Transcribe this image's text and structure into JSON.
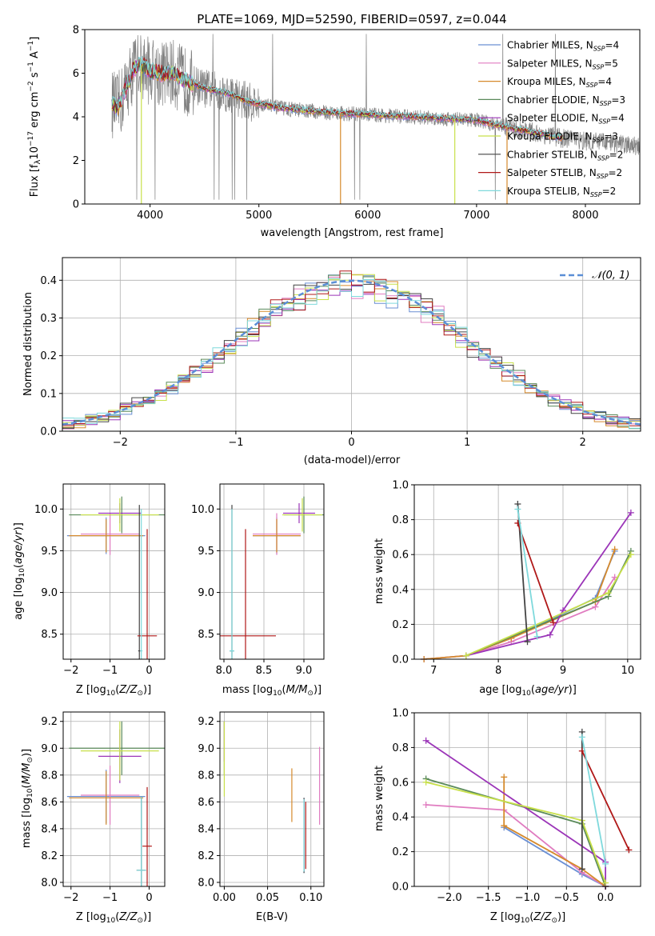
{
  "colors": {
    "chab_miles": "#6a8fd4",
    "salp_miles": "#e07cc0",
    "krou_miles": "#d68a2c",
    "chab_elodie": "#5a8a5a",
    "salp_elodie": "#9b35b8",
    "krou_elodie": "#c8e04a",
    "chab_stelib": "#444444",
    "salp_stelib": "#b01818",
    "krou_stelib": "#7fd9dc",
    "grey_data": "#808080",
    "normal": "#5b8ed6"
  },
  "chart_data": [
    {
      "type": "line",
      "title": "PLATE=1069, MJD=52590, FIBERID=0597, z=0.044",
      "xlabel": "wavelength [Angstrom, rest frame]",
      "ylabel": "Flux [f_λ 10^-17 erg cm^-2 s^-1 A^-1]",
      "xlim": [
        3400,
        8500
      ],
      "ylim": [
        0,
        8
      ],
      "xticks": [
        "4000",
        "5000",
        "6000",
        "7000",
        "8000"
      ],
      "yticks": [
        "0",
        "2",
        "4",
        "6",
        "8"
      ],
      "legend_position": "top-right",
      "continuum_x": [
        3650,
        3700,
        3750,
        3800,
        3850,
        3900,
        3950,
        4000,
        4100,
        4200,
        4300,
        4400,
        4500,
        4600,
        4700,
        4800,
        4900,
        5000,
        5200,
        5400,
        5600,
        5800,
        6000,
        6200,
        6400,
        6600,
        6800,
        7000,
        7200,
        7400,
        7600,
        7800,
        8000,
        8200,
        8400,
        8500
      ],
      "continuum_y": [
        4.6,
        4.4,
        4.9,
        5.6,
        6.2,
        6.4,
        6.3,
        6.1,
        6.0,
        6.0,
        5.7,
        5.5,
        5.3,
        5.2,
        5.1,
        4.9,
        4.7,
        4.6,
        4.4,
        4.3,
        4.2,
        4.15,
        4.1,
        4.05,
        4.0,
        3.95,
        3.9,
        3.85,
        3.6,
        3.4,
        3.2,
        3.0,
        2.9,
        2.8,
        2.7,
        2.65
      ],
      "series": [
        {
          "name": "Chabrier MILES, N_SSP=4"
        },
        {
          "name": "Salpeter MILES, N_SSP=5"
        },
        {
          "name": "Kroupa MILES, N_SSP=4"
        },
        {
          "name": "Chabrier ELODIE, N_SSP=3"
        },
        {
          "name": "Salpeter ELODIE, N_SSP=4"
        },
        {
          "name": "Kroupa ELODIE, N_SSP=3"
        },
        {
          "name": "Chabrier STELIB, N_SSP=2"
        },
        {
          "name": "Salpeter STELIB, N_SSP=2"
        },
        {
          "name": "Kroupa STELIB, N_SSP=2"
        }
      ]
    },
    {
      "type": "line",
      "xlabel": "(data-model)/error",
      "ylabel": "Normed distribution",
      "xlim": [
        -2.5,
        2.5
      ],
      "ylim": [
        0,
        0.46
      ],
      "xticks": [
        "−2",
        "−1",
        "0",
        "1",
        "2"
      ],
      "yticks": [
        "0.0",
        "0.1",
        "0.2",
        "0.3",
        "0.4"
      ],
      "legend": "𝒩(0, 1)",
      "legend_position": "top-right",
      "bin_width": 0.1
    },
    {
      "type": "scatter",
      "xlabel": "Z [log10(Z/Z⊙)]",
      "ylabel": "age [log10(age/yr)]",
      "xlim": [
        -2.2,
        0.4
      ],
      "ylim": [
        8.2,
        10.3
      ],
      "xticks": [
        "−2",
        "−1",
        "0"
      ],
      "yticks": [
        "8.5",
        "9.0",
        "9.5",
        "10.0"
      ],
      "points": [
        {
          "s": "chab_miles",
          "x": -1.1,
          "y": 9.68,
          "xerr": 1.0,
          "yerr": 0.22
        },
        {
          "s": "salp_miles",
          "x": -1.0,
          "y": 9.7,
          "xerr": 0.75,
          "yerr": 0.25
        },
        {
          "s": "krou_miles",
          "x": -1.1,
          "y": 9.68,
          "xerr": 0.95,
          "yerr": 0.2
        },
        {
          "s": "chab_elodie",
          "x": -0.7,
          "y": 9.93,
          "xerr": 1.35,
          "yerr": 0.22
        },
        {
          "s": "salp_elodie",
          "x": -0.75,
          "y": 9.95,
          "xerr": 0.55,
          "yerr": 0.12
        },
        {
          "s": "krou_elodie",
          "x": -0.75,
          "y": 9.93,
          "xerr": 1.0,
          "yerr": 0.2
        },
        {
          "s": "chab_stelib",
          "x": -0.25,
          "y": 8.3,
          "xerr": 0.03,
          "yerr": 1.75
        },
        {
          "s": "salp_stelib",
          "x": -0.05,
          "y": 8.48,
          "xerr": 0.25,
          "yerr": 1.28
        },
        {
          "s": "krou_stelib",
          "x": -0.2,
          "y": 8.3,
          "xerr": 0.03,
          "yerr": 1.7
        }
      ]
    },
    {
      "type": "scatter",
      "xlabel": "mass [log10(M/M⊙)]",
      "xlim": [
        7.95,
        9.25
      ],
      "ylim": [
        8.2,
        10.3
      ],
      "xticks": [
        "8.0",
        "8.5",
        "9.0"
      ],
      "yticks": [
        "8.5",
        "9.0",
        "9.5",
        "10.0"
      ],
      "points": [
        {
          "s": "chab_miles",
          "x": 8.66,
          "y": 9.68,
          "xerr": 0.3,
          "yerr": 0.22
        },
        {
          "s": "salp_miles",
          "x": 8.66,
          "y": 9.7,
          "xerr": 0.3,
          "yerr": 0.25
        },
        {
          "s": "krou_miles",
          "x": 8.66,
          "y": 9.68,
          "xerr": 0.3,
          "yerr": 0.2
        },
        {
          "s": "chab_elodie",
          "x": 9.0,
          "y": 9.93,
          "xerr": 0.25,
          "yerr": 0.22
        },
        {
          "s": "salp_elodie",
          "x": 8.94,
          "y": 9.95,
          "xerr": 0.2,
          "yerr": 0.12
        },
        {
          "s": "krou_elodie",
          "x": 8.98,
          "y": 9.93,
          "xerr": 0.25,
          "yerr": 0.2
        },
        {
          "s": "chab_stelib",
          "x": 8.1,
          "y": 8.3,
          "xerr": 0.03,
          "yerr": 1.75
        },
        {
          "s": "salp_stelib",
          "x": 8.27,
          "y": 8.48,
          "xerr": 0.38,
          "yerr": 1.28
        },
        {
          "s": "krou_stelib",
          "x": 8.1,
          "y": 8.3,
          "xerr": 0.03,
          "yerr": 1.7
        }
      ]
    },
    {
      "type": "line",
      "xlabel": "age [log10(age/yr)]",
      "ylabel": "mass weight",
      "xlim": [
        6.7,
        10.2
      ],
      "ylim": [
        0,
        1
      ],
      "xticks": [
        "7",
        "8",
        "9",
        "10"
      ],
      "yticks": [
        "0.0",
        "0.2",
        "0.4",
        "0.6",
        "0.8",
        "1.0"
      ],
      "series": [
        {
          "s": "chab_miles",
          "x": [
            6.85,
            7.5,
            8.2,
            9.5,
            9.8
          ],
          "y": [
            0.0,
            0.02,
            0.12,
            0.35,
            0.62
          ]
        },
        {
          "s": "salp_miles",
          "x": [
            6.85,
            7.5,
            8.2,
            9.5,
            9.8
          ],
          "y": [
            0.0,
            0.02,
            0.1,
            0.3,
            0.47
          ]
        },
        {
          "s": "krou_miles",
          "x": [
            6.85,
            7.5,
            8.2,
            9.5,
            9.8
          ],
          "y": [
            0.0,
            0.02,
            0.12,
            0.33,
            0.63
          ]
        },
        {
          "s": "chab_elodie",
          "x": [
            7.5,
            9.7,
            10.05
          ],
          "y": [
            0.02,
            0.36,
            0.62
          ]
        },
        {
          "s": "salp_elodie",
          "x": [
            7.5,
            8.8,
            9.0,
            10.05
          ],
          "y": [
            0.02,
            0.14,
            0.28,
            0.84
          ]
        },
        {
          "s": "krou_elodie",
          "x": [
            7.5,
            9.7,
            10.05
          ],
          "y": [
            0.02,
            0.38,
            0.6
          ]
        },
        {
          "s": "chab_stelib",
          "x": [
            8.3,
            8.45
          ],
          "y": [
            0.89,
            0.1
          ]
        },
        {
          "s": "salp_stelib",
          "x": [
            8.3,
            8.85
          ],
          "y": [
            0.78,
            0.21
          ]
        },
        {
          "s": "krou_stelib",
          "x": [
            8.3,
            8.6
          ],
          "y": [
            0.86,
            0.13
          ]
        }
      ]
    },
    {
      "type": "scatter",
      "xlabel": "Z [log10(Z/Z⊙)]",
      "ylabel": "mass [log10(M/M⊙)]",
      "xlim": [
        -2.2,
        0.4
      ],
      "ylim": [
        7.97,
        9.27
      ],
      "xticks": [
        "−2",
        "−1",
        "0"
      ],
      "yticks": [
        "8.0",
        "8.2",
        "8.4",
        "8.6",
        "8.8",
        "9.0",
        "9.2"
      ],
      "points": [
        {
          "s": "chab_miles",
          "x": -1.1,
          "y": 8.64,
          "xerr": 1.0,
          "yerr": 0.2
        },
        {
          "s": "salp_miles",
          "x": -1.0,
          "y": 8.65,
          "xerr": 0.75,
          "yerr": 0.22
        },
        {
          "s": "krou_miles",
          "x": -1.1,
          "y": 8.63,
          "xerr": 0.95,
          "yerr": 0.2
        },
        {
          "s": "chab_elodie",
          "x": -0.7,
          "y": 9.0,
          "xerr": 1.35,
          "yerr": 0.2
        },
        {
          "s": "salp_elodie",
          "x": -0.75,
          "y": 8.94,
          "xerr": 0.55,
          "yerr": 0.2
        },
        {
          "s": "krou_elodie",
          "x": -0.75,
          "y": 8.98,
          "xerr": 1.0,
          "yerr": 0.22
        },
        {
          "s": "chab_stelib",
          "x": -0.2,
          "y": 8.09,
          "xerr": 0.12,
          "yerr": 0.55
        },
        {
          "s": "salp_stelib",
          "x": -0.05,
          "y": 8.27,
          "xerr": 0.12,
          "yerr": 0.44
        },
        {
          "s": "krou_stelib",
          "x": -0.2,
          "y": 8.09,
          "xerr": 0.12,
          "yerr": 0.55
        }
      ]
    },
    {
      "type": "scatter",
      "xlabel": "E(B-V)",
      "xlim": [
        -0.005,
        0.115
      ],
      "ylim": [
        7.97,
        9.27
      ],
      "xticks": [
        "0.00",
        "0.05",
        "0.10"
      ],
      "yticks": [
        "8.0",
        "8.2",
        "8.4",
        "8.6",
        "8.8",
        "9.0",
        "9.2"
      ],
      "points": [
        {
          "s": "chab_miles",
          "x": 0.092,
          "y": 8.35,
          "xerr": 0,
          "yerr": 0.28
        },
        {
          "s": "salp_miles",
          "x": 0.11,
          "y": 8.72,
          "xerr": 0,
          "yerr": 0.29
        },
        {
          "s": "krou_miles",
          "x": 0.078,
          "y": 8.65,
          "xerr": 0,
          "yerr": 0.2
        },
        {
          "s": "chab_elodie",
          "x": 0.0,
          "y": 9.0,
          "xerr": 0,
          "yerr": 0.2
        },
        {
          "s": "salp_elodie",
          "x": 0.0,
          "y": 9.05,
          "xerr": 0,
          "yerr": 0.15
        },
        {
          "s": "krou_elodie",
          "x": 0.0,
          "y": 8.92,
          "xerr": 0,
          "yerr": 0.28
        },
        {
          "s": "chab_stelib",
          "x": 0.092,
          "y": 8.35,
          "xerr": 0,
          "yerr": 0.28
        },
        {
          "s": "salp_stelib",
          "x": 0.094,
          "y": 8.35,
          "xerr": 0,
          "yerr": 0.25
        },
        {
          "s": "krou_stelib",
          "x": 0.092,
          "y": 8.35,
          "xerr": 0,
          "yerr": 0.27
        }
      ]
    },
    {
      "type": "line",
      "xlabel": "Z [log10(Z/Z⊙)]",
      "ylabel": "mass weight",
      "xlim": [
        -2.45,
        0.45
      ],
      "ylim": [
        0,
        1
      ],
      "xticks": [
        "−2.0",
        "−1.5",
        "−1.0",
        "−0.5",
        "0.0"
      ],
      "yticks": [
        "0.0",
        "0.2",
        "0.4",
        "0.6",
        "0.8",
        "1.0"
      ],
      "series": [
        {
          "s": "chab_miles",
          "x": [
            -1.3,
            -0.3,
            0.0
          ],
          "y": [
            0.34,
            0.07,
            0.0
          ]
        },
        {
          "s": "salp_miles",
          "x": [
            -2.3,
            -1.3,
            -0.3,
            0.0
          ],
          "y": [
            0.47,
            0.44,
            0.08,
            0.0
          ]
        },
        {
          "s": "krou_miles",
          "x": [
            -1.3,
            -1.3,
            -0.3,
            0.0
          ],
          "y": [
            0.63,
            0.35,
            0.1,
            0.0
          ]
        },
        {
          "s": "chab_elodie",
          "x": [
            -2.3,
            -0.3,
            0.0
          ],
          "y": [
            0.62,
            0.36,
            0.0
          ]
        },
        {
          "s": "salp_elodie",
          "x": [
            -2.3,
            0.0,
            0.0
          ],
          "y": [
            0.84,
            0.14,
            0.0
          ]
        },
        {
          "s": "krou_elodie",
          "x": [
            -2.3,
            -0.3,
            0.0
          ],
          "y": [
            0.6,
            0.38,
            0.02
          ]
        },
        {
          "s": "chab_stelib",
          "x": [
            -0.3,
            -0.3
          ],
          "y": [
            0.89,
            0.1
          ]
        },
        {
          "s": "salp_stelib",
          "x": [
            -0.3,
            0.3
          ],
          "y": [
            0.78,
            0.21
          ]
        },
        {
          "s": "krou_stelib",
          "x": [
            -0.3,
            0.0
          ],
          "y": [
            0.86,
            0.13
          ]
        }
      ]
    }
  ]
}
